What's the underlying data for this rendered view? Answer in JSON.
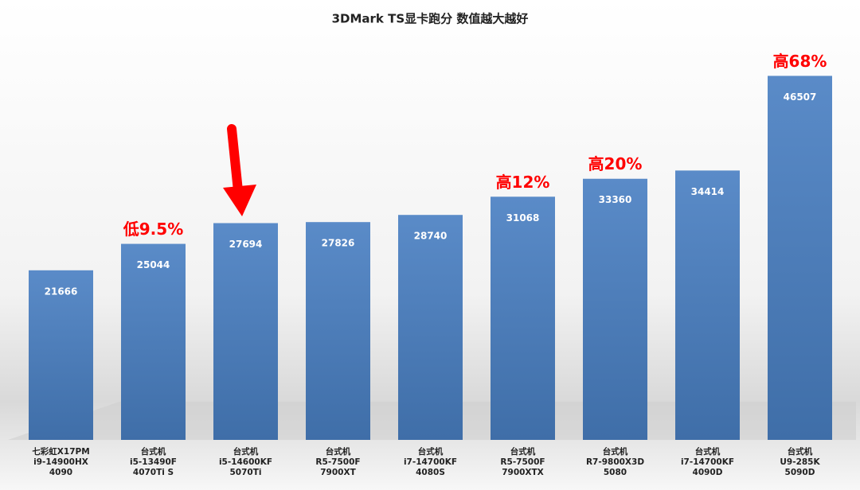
{
  "chart_data": {
    "type": "bar",
    "title": "3DMark TS显卡跑分 数值越大越好",
    "categories": [
      [
        "七彩虹X17PM",
        "i9-14900HX",
        "4090"
      ],
      [
        "台式机",
        "i5-13490F",
        "4070Ti S"
      ],
      [
        "台式机",
        "i5-14600KF",
        "5070Ti"
      ],
      [
        "台式机",
        "R5-7500F",
        "7900XT"
      ],
      [
        "台式机",
        "i7-14700KF",
        "4080S"
      ],
      [
        "台式机",
        "R5-7500F",
        "7900XTX"
      ],
      [
        "台式机",
        "R7-9800X3D",
        "5080"
      ],
      [
        "台式机",
        "i7-14700KF",
        "4090D"
      ],
      [
        "台式机",
        "U9-285K",
        "5090D"
      ]
    ],
    "values": [
      21666,
      25044,
      27694,
      27826,
      28740,
      31068,
      33360,
      34414,
      46507
    ],
    "value_annotations": [
      null,
      "低9.5%",
      null,
      null,
      null,
      "高12%",
      "高20%",
      null,
      "高68%"
    ],
    "color": "#4f81bd",
    "ylim": [
      0,
      50000
    ]
  }
}
